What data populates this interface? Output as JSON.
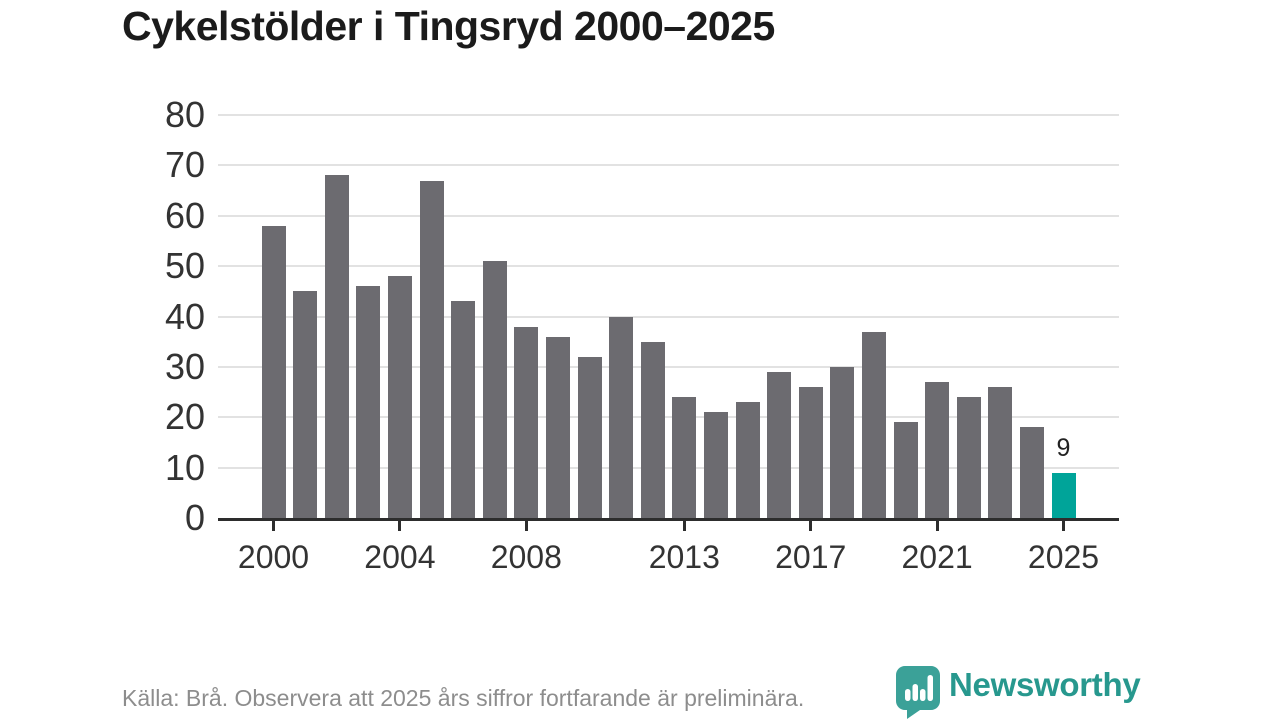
{
  "title": "Cykelstölder i Tingsryd 2000–2025",
  "footer": {
    "source_note": "Källa: Brå. Observera att 2025 års siffror fortfarande är preliminära.",
    "brand": "Newsworthy"
  },
  "colors": {
    "bar": "#6c6b70",
    "bar_highlight": "#00a499",
    "logo_teal": "#3ba198",
    "brand_text_teal": "#27988e",
    "grid": "#e2e2e2",
    "axis": "#2d2d2d",
    "axis_text": "#333333",
    "footer_text": "#8d8d8d",
    "title_text": "#1b1b1b"
  },
  "chart_data": {
    "type": "bar",
    "title": "Cykelstölder i Tingsryd 2000–2025",
    "x": [
      2000,
      2001,
      2002,
      2003,
      2004,
      2005,
      2006,
      2007,
      2008,
      2009,
      2010,
      2011,
      2012,
      2013,
      2014,
      2015,
      2016,
      2017,
      2018,
      2019,
      2020,
      2021,
      2022,
      2023,
      2024,
      2025
    ],
    "values": [
      58,
      45,
      68,
      46,
      48,
      67,
      43,
      51,
      38,
      36,
      32,
      40,
      35,
      24,
      21,
      23,
      29,
      26,
      30,
      37,
      19,
      27,
      24,
      26,
      18,
      9
    ],
    "highlight_index": 25,
    "annotation": {
      "index": 25,
      "label": "9"
    },
    "xlabel": "",
    "ylabel": "",
    "ylim": [
      0,
      80
    ],
    "ytick_step": 10,
    "yticks": [
      0,
      10,
      20,
      30,
      40,
      50,
      60,
      70,
      80
    ],
    "xticks": [
      2000,
      2004,
      2008,
      2013,
      2017,
      2021,
      2025
    ],
    "grid": "horizontal",
    "legend": "none"
  }
}
